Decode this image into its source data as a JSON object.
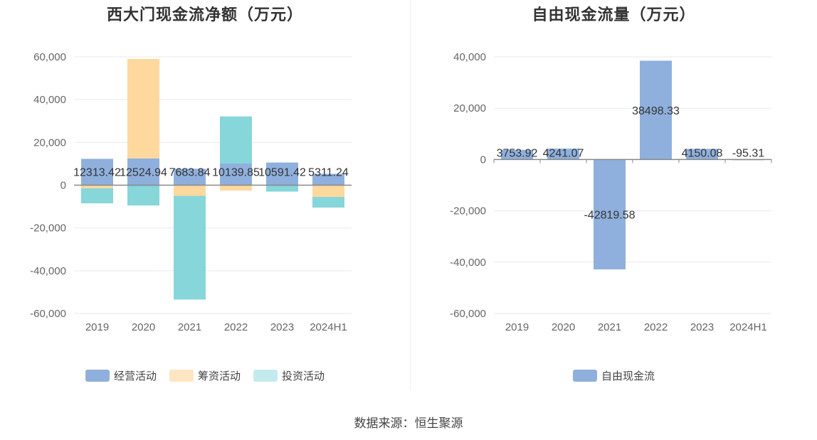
{
  "source_note": "数据来源：恒生聚源",
  "colors": {
    "operating": "#8fb0dd",
    "financing": "#fed89c",
    "investing": "#86d6da",
    "free_cf": "#8fb0dd",
    "grid": "#e6e9f2",
    "axis": "#888888"
  },
  "chart_data": [
    {
      "type": "bar",
      "stacked": true,
      "title": "西大门现金流净额（万元）",
      "categories": [
        "2019",
        "2020",
        "2021",
        "2022",
        "2023",
        "2024H1"
      ],
      "ylim": [
        -60000,
        60000
      ],
      "yticks": [
        60000,
        40000,
        20000,
        0,
        -20000,
        -40000,
        -60000
      ],
      "ytick_labels": [
        "60,000",
        "40,000",
        "20,000",
        "0",
        "-20,000",
        "-40,000",
        "-60,000"
      ],
      "legend_position": "bottom",
      "series": [
        {
          "name": "经营活动",
          "values": [
            12313.42,
            12524.94,
            7683.84,
            10139.85,
            10591.42,
            5311.24
          ],
          "labels": [
            "12313.42",
            "12524.94",
            "7683.84",
            "10139.85",
            "10591.42",
            "5311.24"
          ]
        },
        {
          "name": "筹资活动",
          "values": [
            -1500,
            46500,
            -5000,
            -2500,
            0,
            -5500
          ]
        },
        {
          "name": "投资活动",
          "values": [
            -7000,
            -9500,
            -48500,
            22000,
            -3000,
            -5000
          ]
        }
      ]
    },
    {
      "type": "bar",
      "title": "自由现金流量（万元）",
      "categories": [
        "2019",
        "2020",
        "2021",
        "2022",
        "2023",
        "2024H1"
      ],
      "ylim": [
        -60000,
        40000
      ],
      "yticks": [
        40000,
        20000,
        0,
        -20000,
        -40000,
        -60000
      ],
      "ytick_labels": [
        "40,000",
        "20,000",
        "0",
        "-20,000",
        "-40,000",
        "-60,000"
      ],
      "legend_position": "bottom",
      "series": [
        {
          "name": "自由现金流",
          "values": [
            3753.92,
            4241.07,
            -42819.58,
            38498.33,
            4150.08,
            -95.31
          ],
          "labels": [
            "3753.92",
            "4241.07",
            "-42819.58",
            "38498.33",
            "4150.08",
            "-95.31"
          ]
        }
      ]
    }
  ]
}
